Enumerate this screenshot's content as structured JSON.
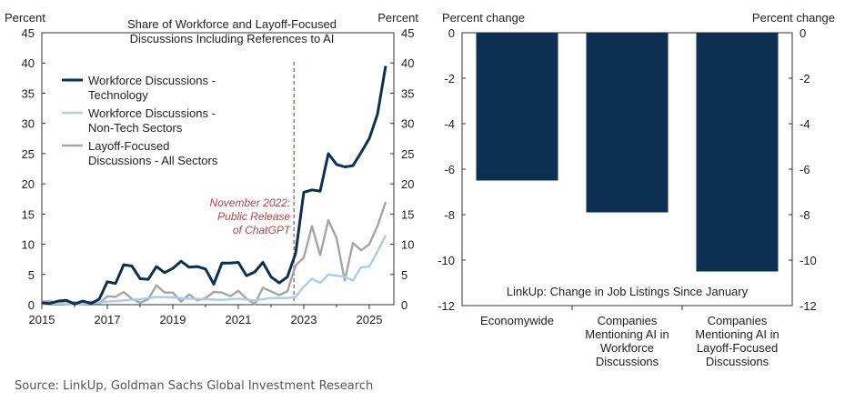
{
  "chart_data": [
    {
      "type": "line",
      "title": "Share of Workforce and Layoff-Focused Discussions Including References to AI",
      "title_lines": [
        "Share of Workforce and Layoff-Focused",
        "Discussions Including References to AI"
      ],
      "ylabel_left": "Percent",
      "ylabel_right": "Percent",
      "xlim": [
        2015,
        2025.75
      ],
      "ylim": [
        0,
        45
      ],
      "yticks": [
        0,
        5,
        10,
        15,
        20,
        25,
        30,
        35,
        40,
        45
      ],
      "xticks": [
        2015,
        2017,
        2019,
        2021,
        2023,
        2025
      ],
      "legend_position": "top-left",
      "annotation": {
        "x": 2022.7,
        "lines": [
          "November 2022:",
          "Public Release",
          "of ChatGPT"
        ],
        "color": "#b0454d"
      },
      "series": [
        {
          "name": "Workforce Discussions - Technology",
          "legend_lines": [
            "Workforce Discussions -",
            "Technology"
          ],
          "color": "#0d2f52",
          "x": [
            2015.0,
            2015.25,
            2015.5,
            2015.75,
            2016.0,
            2016.25,
            2016.5,
            2016.75,
            2017.0,
            2017.25,
            2017.5,
            2017.75,
            2018.0,
            2018.25,
            2018.5,
            2018.75,
            2019.0,
            2019.25,
            2019.5,
            2019.75,
            2020.0,
            2020.25,
            2020.5,
            2020.75,
            2021.0,
            2021.25,
            2021.5,
            2021.75,
            2022.0,
            2022.25,
            2022.5,
            2022.75,
            2023.0,
            2023.25,
            2023.5,
            2023.75,
            2024.0,
            2024.25,
            2024.5,
            2024.75,
            2025.0,
            2025.25,
            2025.5
          ],
          "values": [
            0.3,
            0.2,
            0.6,
            0.7,
            0.1,
            0.6,
            0.2,
            0.9,
            3.8,
            3.5,
            6.6,
            6.4,
            4.3,
            4.2,
            6.3,
            5.3,
            6.0,
            7.2,
            6.2,
            6.3,
            5.9,
            3.4,
            6.9,
            6.9,
            7.0,
            4.8,
            5.4,
            7.0,
            4.6,
            3.6,
            4.6,
            8.5,
            18.6,
            19.0,
            18.8,
            25.0,
            23.2,
            22.8,
            23.0,
            25.2,
            27.5,
            31.5,
            39.5
          ]
        },
        {
          "name": "Workforce Discussions - Non-Tech Sectors",
          "legend_lines": [
            "Workforce Discussions -",
            "Non-Tech Sectors"
          ],
          "color": "#a8cde6",
          "x": [
            2015.0,
            2015.5,
            2016.0,
            2016.5,
            2017.0,
            2017.5,
            2018.0,
            2018.5,
            2019.0,
            2019.5,
            2020.0,
            2020.5,
            2021.0,
            2021.5,
            2022.0,
            2022.5,
            2022.75,
            2023.0,
            2023.25,
            2023.5,
            2023.75,
            2024.0,
            2024.25,
            2024.5,
            2024.75,
            2025.0,
            2025.25,
            2025.5
          ],
          "values": [
            0.1,
            0.2,
            0.1,
            0.2,
            0.5,
            0.7,
            0.9,
            1.3,
            1.2,
            1.0,
            0.9,
            0.8,
            1.0,
            0.7,
            1.1,
            1.1,
            1.3,
            3.0,
            4.3,
            3.6,
            5.0,
            4.8,
            4.6,
            4.0,
            6.2,
            6.3,
            8.8,
            11.5
          ]
        },
        {
          "name": "Layoff-Focused Discussions - All Sectors",
          "legend_lines": [
            "Layoff-Focused",
            "Discussions - All Sectors"
          ],
          "color": "#a5a5a5",
          "x": [
            2015.0,
            2015.25,
            2015.5,
            2015.75,
            2016.0,
            2016.25,
            2016.5,
            2016.75,
            2017.0,
            2017.25,
            2017.5,
            2017.75,
            2018.0,
            2018.25,
            2018.5,
            2018.75,
            2019.0,
            2019.25,
            2019.5,
            2019.75,
            2020.0,
            2020.25,
            2020.5,
            2020.75,
            2021.0,
            2021.25,
            2021.5,
            2021.75,
            2022.0,
            2022.25,
            2022.5,
            2022.75,
            2023.0,
            2023.25,
            2023.5,
            2023.75,
            2024.0,
            2024.25,
            2024.5,
            2024.75,
            2025.0,
            2025.25,
            2025.5
          ],
          "values": [
            0.5,
            0.6,
            0.3,
            0.2,
            0.4,
            0.2,
            0.5,
            0.2,
            1.4,
            1.3,
            2.1,
            1.0,
            0.3,
            0.9,
            3.2,
            2.0,
            2.0,
            0.5,
            1.7,
            0.7,
            1.1,
            2.1,
            2.0,
            1.4,
            2.3,
            1.0,
            0.1,
            2.8,
            2.2,
            1.6,
            2.2,
            6.5,
            7.8,
            13.0,
            8.2,
            14.0,
            11.0,
            4.0,
            10.2,
            9.0,
            10.0,
            13.0,
            17.0
          ]
        }
      ]
    },
    {
      "type": "bar",
      "title": "LinkUp: Change in Job Listings Since January",
      "ylabel_left": "Percent change",
      "ylabel_right": "Percent change",
      "ylim": [
        -12,
        0
      ],
      "yticks": [
        0,
        -2,
        -4,
        -6,
        -8,
        -10,
        -12
      ],
      "color": "#0d2f52",
      "categories": [
        "Economywide",
        "Companies Mentioning AI in Workforce Discussions",
        "Companies Mentioning AI in Layoff-Focused Discussions"
      ],
      "category_lines": [
        [
          "Economywide"
        ],
        [
          "Companies",
          "Mentioning AI in",
          "Workforce",
          "Discussions"
        ],
        [
          "Companies",
          "Mentioning AI in",
          "Layoff-Focused",
          "Discussions"
        ]
      ],
      "values": [
        -6.5,
        -7.9,
        -10.5
      ]
    }
  ],
  "source": "Source: LinkUp, Goldman Sachs Global Investment Research"
}
